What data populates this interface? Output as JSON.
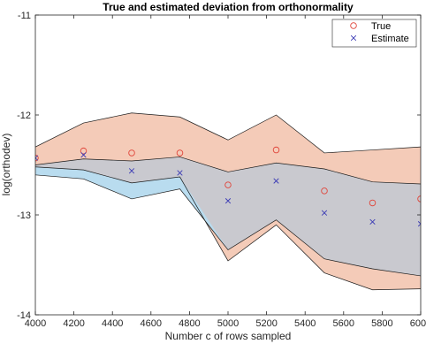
{
  "chart_data": {
    "type": "line",
    "title": "True and estimated deviation from orthonormality",
    "xlabel": "Number c of rows sampled",
    "ylabel": "log(orthodev)",
    "xlim": [
      4000,
      6000
    ],
    "ylim": [
      -14,
      -11
    ],
    "x_ticks": [
      "4000",
      "4200",
      "4400",
      "4600",
      "4800",
      "5000",
      "5200",
      "5400",
      "5600",
      "5800",
      "6000"
    ],
    "y_ticks": [
      "-14",
      "-13",
      "-12",
      "-11"
    ],
    "grid": false,
    "legend_location": "top-right",
    "x": [
      4000,
      4250,
      4500,
      4750,
      5000,
      5250,
      5500,
      5750,
      6000
    ],
    "series": [
      {
        "name": "True",
        "marker": "circle",
        "color": "#e0453a",
        "values": [
          -12.43,
          -12.36,
          -12.38,
          -12.38,
          -12.7,
          -12.35,
          -12.76,
          -12.88,
          -12.84
        ]
      },
      {
        "name": "Estimate",
        "marker": "x",
        "color": "#3a3ab5",
        "values": [
          -12.43,
          -12.4,
          -12.56,
          -12.58,
          -12.86,
          -12.66,
          -12.98,
          -13.07,
          -13.09
        ]
      }
    ],
    "bands": [
      {
        "color": "#f4cbb8",
        "upper": [
          -12.32,
          -12.08,
          -11.98,
          -12.02,
          -12.25,
          -12.0,
          -12.38,
          -12.35,
          -12.32
        ],
        "lower": [
          -12.52,
          -12.55,
          -12.68,
          -12.62,
          -13.46,
          -13.1,
          -13.58,
          -13.75,
          -13.74
        ]
      },
      {
        "color": "#b9dcef",
        "upper": [
          -12.5,
          -12.44,
          -12.46,
          -12.42,
          -12.57,
          -12.48,
          -12.54,
          -12.67,
          -12.69
        ],
        "lower": [
          -12.6,
          -12.64,
          -12.84,
          -12.74,
          -13.35,
          -13.05,
          -13.44,
          -13.54,
          -13.61
        ]
      }
    ],
    "overlap_color": "#c9c9cf"
  }
}
